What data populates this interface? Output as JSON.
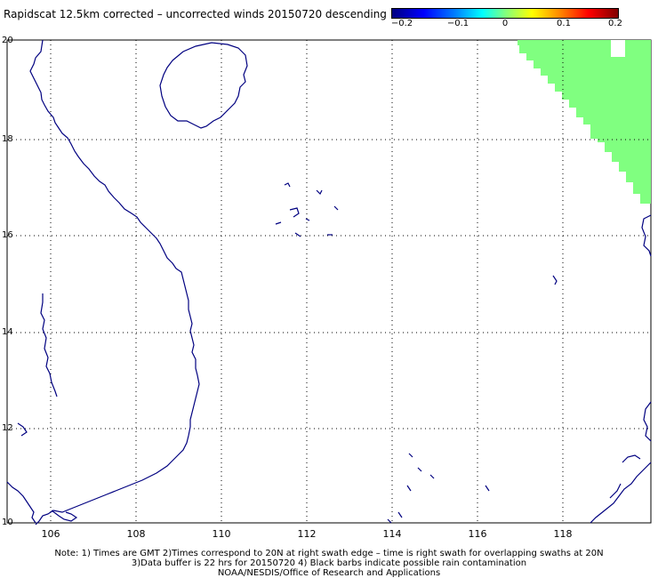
{
  "title": "Rapidscat 12.5km corrected – uncorrected winds 20150720 descending",
  "colorbar": {
    "ticks": [
      "−0.2",
      "−0.1",
      "0",
      "0.1",
      "0.2"
    ]
  },
  "axes": {
    "lat_labels": [
      "20",
      "18",
      "16",
      "14",
      "12",
      "10"
    ],
    "lon_labels": [
      "106",
      "108",
      "110",
      "112",
      "114",
      "116",
      "118"
    ]
  },
  "notes": [
    "Note: 1) Times are GMT 2)Times correspond to 20N at right swath edge – time is right swath for overlapping swaths at 20N",
    "3)Data buffer is 22 hrs for 20150720 4) Black barbs indicate possible rain contamination",
    "NOAA/NESDIS/Office of Research and Applications"
  ],
  "colors": {
    "coastline": "#000080",
    "swath_fill": "#80ff80",
    "grid": "#000000"
  }
}
